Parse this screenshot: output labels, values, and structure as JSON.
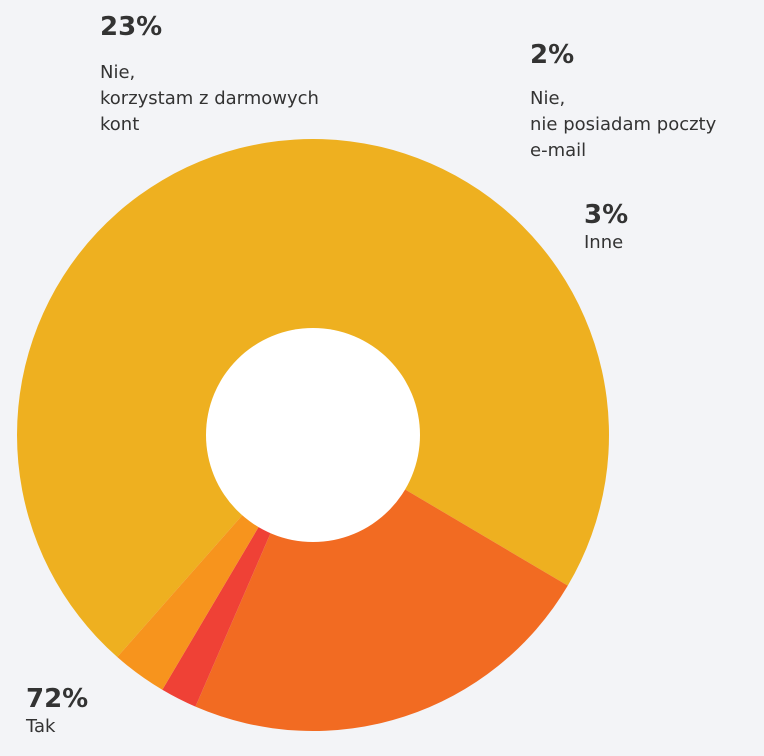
{
  "chart_data": {
    "type": "pie",
    "donut": true,
    "slices": [
      {
        "pct_label": "72%",
        "label": "Tak",
        "value": 72,
        "color": "#eeb020"
      },
      {
        "pct_label": "23%",
        "label": "Nie,\nkorzystam z darmowych\nkont",
        "value": 23,
        "color": "#f26b22"
      },
      {
        "pct_label": "2%",
        "label": "Nie,\nnie posiadam poczty\ne-mail",
        "value": 2,
        "color": "#ef4136"
      },
      {
        "pct_label": "3%",
        "label": "Inne",
        "value": 3,
        "color": "#f7941d"
      }
    ],
    "hole_color": "#ffffff",
    "background": "#f3f4f7"
  }
}
